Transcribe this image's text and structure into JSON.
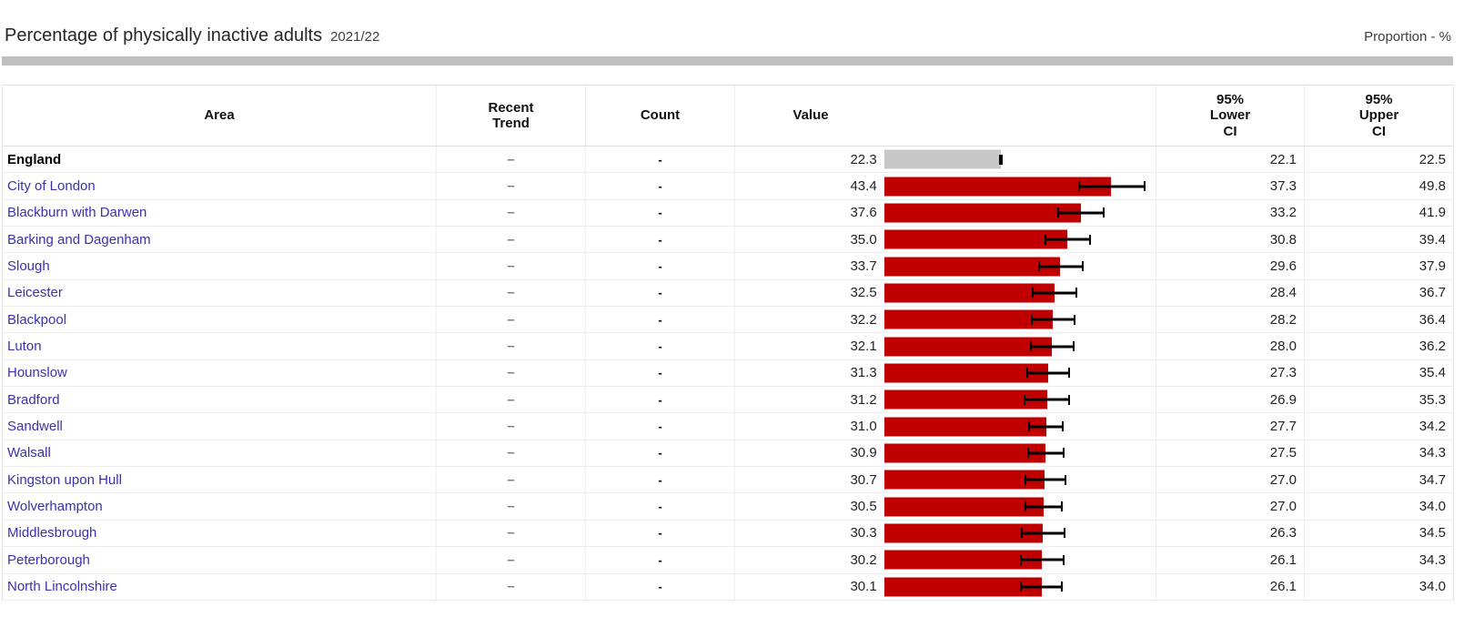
{
  "page": {
    "title": "Percentage of physically inactive adults",
    "period": "2021/22",
    "unit_label": "Proportion - %"
  },
  "colors": {
    "bar": "#c00000",
    "benchmark_bar": "#c8c8c8",
    "error_bar": "#000000",
    "area_link": "#3b31b0",
    "divider": "#bfbfbf"
  },
  "table": {
    "headers": {
      "area": "Area",
      "trend": "Recent\nTrend",
      "count": "Count",
      "value": "Value",
      "lower": "95%\nLower\nCI",
      "upper": "95%\nUpper\nCI"
    },
    "rows": [
      {
        "area": "England",
        "trend": "–",
        "count": "-",
        "value": "22.3",
        "lower": "22.1",
        "upper": "22.5",
        "benchmark": true
      },
      {
        "area": "City of London",
        "trend": "–",
        "count": "-",
        "value": "43.4",
        "lower": "37.3",
        "upper": "49.8"
      },
      {
        "area": "Blackburn with Darwen",
        "trend": "–",
        "count": "-",
        "value": "37.6",
        "lower": "33.2",
        "upper": "41.9"
      },
      {
        "area": "Barking and Dagenham",
        "trend": "–",
        "count": "-",
        "value": "35.0",
        "lower": "30.8",
        "upper": "39.4"
      },
      {
        "area": "Slough",
        "trend": "–",
        "count": "-",
        "value": "33.7",
        "lower": "29.6",
        "upper": "37.9"
      },
      {
        "area": "Leicester",
        "trend": "–",
        "count": "-",
        "value": "32.5",
        "lower": "28.4",
        "upper": "36.7"
      },
      {
        "area": "Blackpool",
        "trend": "–",
        "count": "-",
        "value": "32.2",
        "lower": "28.2",
        "upper": "36.4"
      },
      {
        "area": "Luton",
        "trend": "–",
        "count": "-",
        "value": "32.1",
        "lower": "28.0",
        "upper": "36.2"
      },
      {
        "area": "Hounslow",
        "trend": "–",
        "count": "-",
        "value": "31.3",
        "lower": "27.3",
        "upper": "35.4"
      },
      {
        "area": "Bradford",
        "trend": "–",
        "count": "-",
        "value": "31.2",
        "lower": "26.9",
        "upper": "35.3"
      },
      {
        "area": "Sandwell",
        "trend": "–",
        "count": "-",
        "value": "31.0",
        "lower": "27.7",
        "upper": "34.2"
      },
      {
        "area": "Walsall",
        "trend": "–",
        "count": "-",
        "value": "30.9",
        "lower": "27.5",
        "upper": "34.3"
      },
      {
        "area": "Kingston upon Hull",
        "trend": "–",
        "count": "-",
        "value": "30.7",
        "lower": "27.0",
        "upper": "34.7"
      },
      {
        "area": "Wolverhampton",
        "trend": "–",
        "count": "-",
        "value": "30.5",
        "lower": "27.0",
        "upper": "34.0"
      },
      {
        "area": "Middlesbrough",
        "trend": "–",
        "count": "-",
        "value": "30.3",
        "lower": "26.3",
        "upper": "34.5"
      },
      {
        "area": "Peterborough",
        "trend": "–",
        "count": "-",
        "value": "30.2",
        "lower": "26.1",
        "upper": "34.3"
      },
      {
        "area": "North Lincolnshire",
        "trend": "–",
        "count": "-",
        "value": "30.1",
        "lower": "26.1",
        "upper": "34.0"
      }
    ]
  },
  "chart_data": {
    "type": "bar",
    "orientation": "horizontal",
    "title": "Percentage of physically inactive adults",
    "subtitle": "2021/22",
    "unit": "Proportion - %",
    "categories": [
      "England",
      "City of London",
      "Blackburn with Darwen",
      "Barking and Dagenham",
      "Slough",
      "Leicester",
      "Blackpool",
      "Luton",
      "Hounslow",
      "Bradford",
      "Sandwell",
      "Walsall",
      "Kingston upon Hull",
      "Wolverhampton",
      "Middlesbrough",
      "Peterborough",
      "North Lincolnshire"
    ],
    "series": [
      {
        "name": "Value",
        "values": [
          22.3,
          43.4,
          37.6,
          35.0,
          33.7,
          32.5,
          32.2,
          32.1,
          31.3,
          31.2,
          31.0,
          30.9,
          30.7,
          30.5,
          30.3,
          30.2,
          30.1
        ]
      },
      {
        "name": "95% Lower CI",
        "values": [
          22.1,
          37.3,
          33.2,
          30.8,
          29.6,
          28.4,
          28.2,
          28.0,
          27.3,
          26.9,
          27.7,
          27.5,
          27.0,
          27.0,
          26.3,
          26.1,
          26.1
        ]
      },
      {
        "name": "95% Upper CI",
        "values": [
          22.5,
          49.8,
          41.9,
          39.4,
          37.9,
          36.7,
          36.4,
          36.2,
          35.4,
          35.3,
          34.2,
          34.3,
          34.7,
          34.0,
          34.5,
          34.3,
          34.0
        ]
      }
    ],
    "xlim": [
      0,
      52
    ],
    "grid": false,
    "legend": false,
    "benchmark_category": "England",
    "error_bars": true
  }
}
